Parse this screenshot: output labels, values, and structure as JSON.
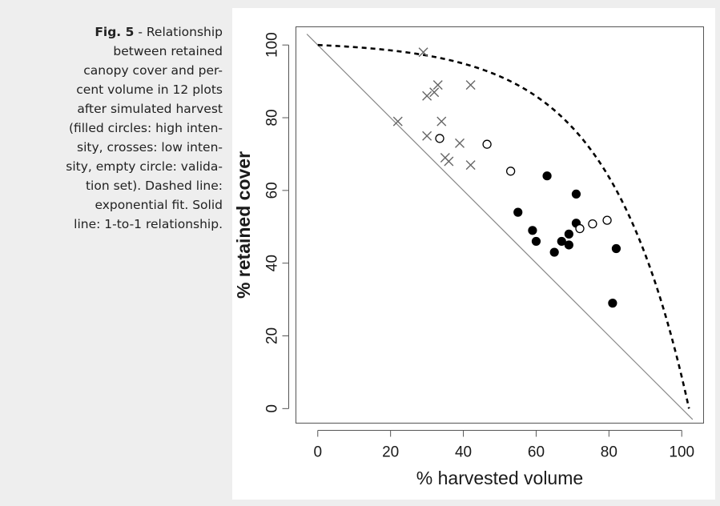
{
  "caption": {
    "label": "Fig. 5",
    "lines": [
      " - Relationship",
      "between retained",
      "canopy cover and per-",
      "cent volume in 12 plots",
      "after simulated harvest",
      "(filled circles: high inten-",
      "sity, crosses: low inten-",
      "sity, empty circle: valida-",
      "tion set). Dashed line:",
      "exponential fit. Solid",
      "line: 1-to-1 relationship."
    ]
  },
  "chart_data": {
    "type": "scatter",
    "xlabel": "% harvested volume",
    "ylabel": "% retained cover",
    "xlim": [
      -6,
      106
    ],
    "ylim": [
      -4,
      105
    ],
    "x_ticks": [
      0,
      20,
      40,
      60,
      80,
      100
    ],
    "y_ticks": [
      0,
      20,
      40,
      60,
      80,
      100
    ],
    "grid": false,
    "series": [
      {
        "marker": "filled-circle",
        "points": [
          [
            55,
            54
          ],
          [
            59,
            49
          ],
          [
            60,
            46
          ],
          [
            63,
            64
          ],
          [
            65,
            43
          ],
          [
            67,
            46
          ],
          [
            69,
            48
          ],
          [
            69,
            45
          ],
          [
            71,
            59
          ],
          [
            71,
            51
          ],
          [
            81,
            29
          ],
          [
            82,
            44
          ]
        ]
      },
      {
        "marker": "cross",
        "points": [
          [
            22,
            79
          ],
          [
            29,
            98
          ],
          [
            30,
            75
          ],
          [
            30,
            86
          ],
          [
            32,
            87
          ],
          [
            33,
            89
          ],
          [
            34,
            79
          ],
          [
            35,
            69
          ],
          [
            36,
            68
          ],
          [
            39,
            73
          ],
          [
            42,
            89
          ],
          [
            42,
            67
          ]
        ]
      },
      {
        "marker": "open-circle",
        "points": [
          [
            33.5,
            74.3
          ],
          [
            46.5,
            72.7
          ],
          [
            53,
            65.3
          ],
          [
            72,
            49.5
          ],
          [
            75.5,
            50.8
          ],
          [
            79.5,
            51.8
          ]
        ]
      }
    ],
    "lines": [
      {
        "style": "dashed",
        "kind": "exponential-fit"
      },
      {
        "style": "solid",
        "kind": "one-to-one",
        "points": [
          [
            -3,
            103
          ],
          [
            103,
            -3
          ]
        ]
      }
    ],
    "colors": {
      "points": "#000000",
      "crosses": "#666666",
      "one_to_one": "#888888",
      "fit": "#000000"
    }
  }
}
